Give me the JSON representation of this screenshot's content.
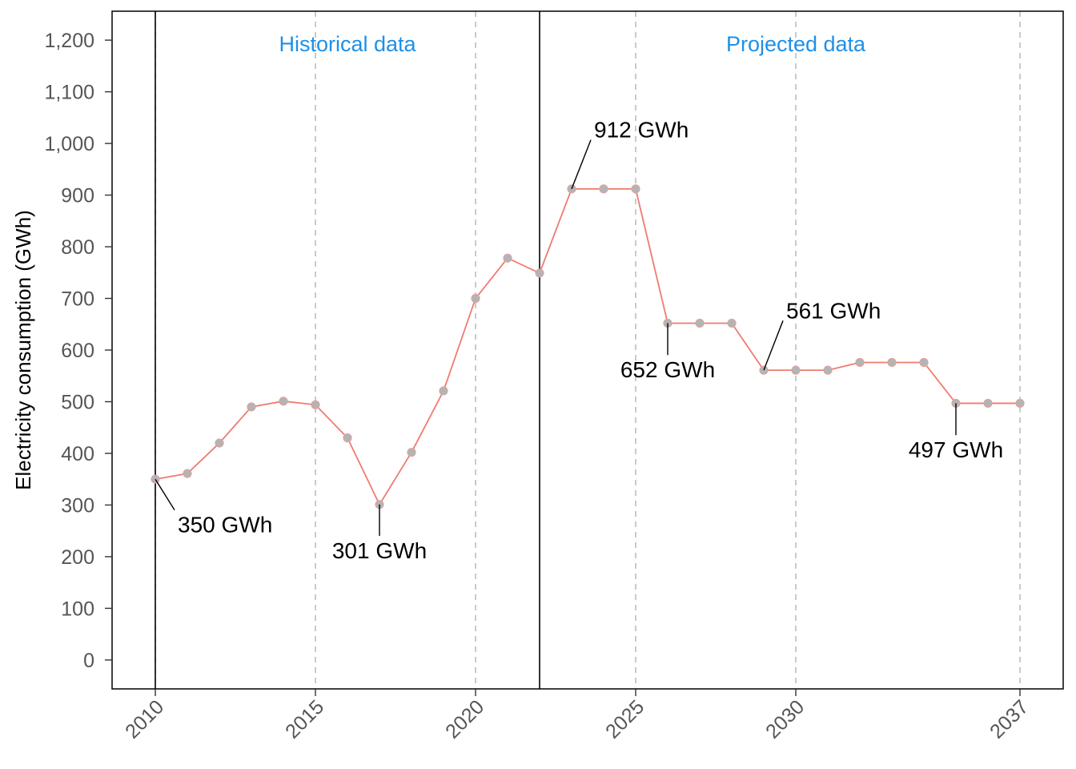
{
  "chart_data": {
    "type": "line",
    "title": "",
    "xlabel": "",
    "ylabel": "Electricity consumption (GWh)",
    "xlim": [
      2008.65,
      2038.35
    ],
    "ylim": [
      -56,
      1256
    ],
    "x_ticks": [
      2010,
      2015,
      2020,
      2025,
      2030,
      2037
    ],
    "y_ticks": [
      0,
      100,
      200,
      300,
      400,
      500,
      600,
      700,
      800,
      900,
      1000,
      1100,
      1200
    ],
    "y_tick_labels": [
      "0",
      "100",
      "200",
      "300",
      "400",
      "500",
      "600",
      "700",
      "800",
      "900",
      "1,000",
      "1,100",
      "1,200"
    ],
    "grid": "vertical dashed lines at x ticks",
    "legend": "none",
    "colors": {
      "line": "#f07a6f",
      "marker": "#b4b4b4",
      "region_label": "#1e90e8",
      "gridline": "#bdbdbd",
      "axis": "#000000"
    },
    "region_dividers": [
      2010,
      2022
    ],
    "regions": [
      {
        "label": "Historical data",
        "center_x": 2016
      },
      {
        "label": "Projected data",
        "center_x": 2030
      }
    ],
    "series": [
      {
        "x": [
          2010,
          2011,
          2012,
          2013,
          2014,
          2015,
          2016,
          2017,
          2018,
          2019,
          2020,
          2021,
          2022,
          2023,
          2024,
          2025,
          2026,
          2027,
          2028,
          2029,
          2030,
          2031,
          2032,
          2033,
          2034,
          2035,
          2036,
          2037
        ],
        "values": [
          350,
          361,
          420,
          490,
          501,
          494,
          430,
          301,
          402,
          521,
          700,
          778,
          749,
          912,
          912,
          912,
          652,
          652,
          652,
          561,
          561,
          561,
          576,
          576,
          576,
          497,
          497,
          497
        ]
      }
    ],
    "annotations": [
      {
        "x": 2010,
        "y": 350,
        "label": "350 GWh",
        "label_x": 2010.6,
        "label_y": 250
      },
      {
        "x": 2017,
        "y": 301,
        "label": "301 GWh",
        "label_x": 2017,
        "label_y": 200
      },
      {
        "x": 2023,
        "y": 912,
        "label": "912 GWh",
        "label_x": 2023.6,
        "label_y": 1010
      },
      {
        "x": 2026,
        "y": 652,
        "label": "652 GWh",
        "label_x": 2026,
        "label_y": 550
      },
      {
        "x": 2029,
        "y": 561,
        "label": "561 GWh",
        "label_x": 2029.6,
        "label_y": 660
      },
      {
        "x": 2035,
        "y": 497,
        "label": "497 GWh",
        "label_x": 2035,
        "label_y": 395
      }
    ]
  }
}
